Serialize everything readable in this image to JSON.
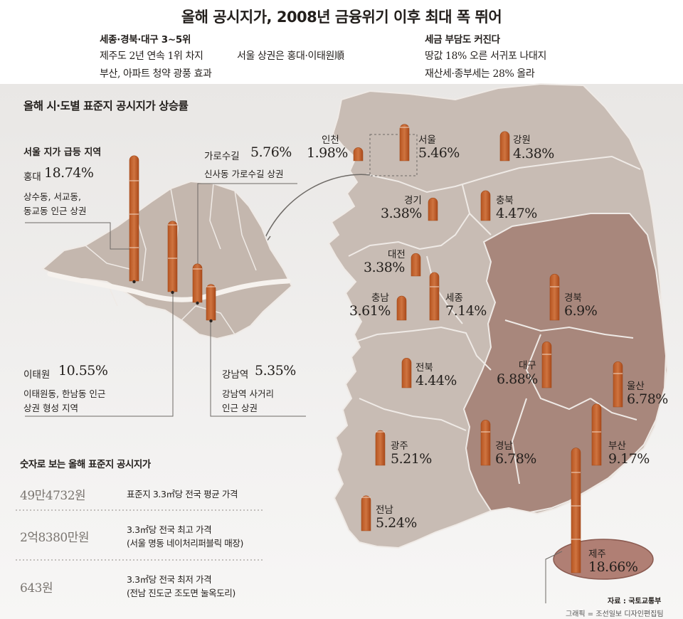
{
  "title": "올해 공시지가, 2008년 금융위기 이후 최대 폭 뛰어",
  "summary": {
    "left_heading": "세종·경북·대구 3~5위",
    "left_lines": [
      "제주도 2년 연속 1위 차지",
      "부산, 아파트 청약 광풍 효과"
    ],
    "middle_line": "서울 상권은 홍대·이태원順",
    "right_heading": "세금 부담도 커진다",
    "right_lines": [
      "땅값 18% 오른 서귀포 나대지",
      "재산세·종부세는 28% 올라"
    ]
  },
  "chart_data": {
    "type": "bar",
    "title": "올해 시·도별 표준지 공시지가 상승률",
    "unit": "%",
    "categories": [
      "인천",
      "서울",
      "강원",
      "경기",
      "충북",
      "대전",
      "충남",
      "세종",
      "경북",
      "전북",
      "대구",
      "울산",
      "광주",
      "경남",
      "부산",
      "전남",
      "제주"
    ],
    "values": [
      1.98,
      5.46,
      4.38,
      3.38,
      4.47,
      3.38,
      3.61,
      7.14,
      6.9,
      4.44,
      6.88,
      6.78,
      5.21,
      6.78,
      9.17,
      5.24,
      18.66
    ],
    "labels": [
      "1.98%",
      "5.46%",
      "4.38%",
      "3.38%",
      "4.47%",
      "3.38%",
      "3.61%",
      "7.14%",
      "6.9%",
      "4.44%",
      "6.88%",
      "6.78%",
      "5.21%",
      "6.78%",
      "9.17%",
      "5.24%",
      "18.66%"
    ],
    "seoul_inset": {
      "title": "서울 지가 급등 지역",
      "areas": [
        {
          "name": "홍대",
          "value": 18.74,
          "label": "18.74%",
          "desc": [
            "상수동, 서교동,",
            "동교동 인근 상권"
          ]
        },
        {
          "name": "이태원",
          "value": 10.55,
          "label": "10.55%",
          "desc": [
            "이태원동, 한남동 인근",
            "상권 형성 지역"
          ]
        },
        {
          "name": "가로수길",
          "value": 5.76,
          "label": "5.76%",
          "desc": [
            "신사동 가로수길 상권"
          ]
        },
        {
          "name": "강남역",
          "value": 5.35,
          "label": "5.35%",
          "desc": [
            "강남역 사거리",
            "인근 상권"
          ]
        }
      ]
    },
    "colors": {
      "bar": "#c0602a",
      "bar_dark": "#a24b1c",
      "land": "#c8bcb4",
      "land_highlight": "#a8877c",
      "jeju": "#b07f74",
      "border": "#efeae6"
    }
  },
  "stats": {
    "title": "숫자로 보는 올해 표준지 공시지가",
    "rows": [
      {
        "value": "49만4732원",
        "desc": [
          "표준지 3.3㎡당 전국 평균 가격"
        ]
      },
      {
        "value": "2억8380만원",
        "desc": [
          "3.3㎡당 전국 최고 가격",
          "(서울 명동 네이처리퍼블릭 매장)"
        ]
      },
      {
        "value": "643원",
        "desc": [
          "3.3㎡당 전국 최저 가격",
          "(전남 진도군 조도면 눌옥도리)"
        ]
      }
    ]
  },
  "source": "자료 : 국토교통부",
  "credit": "그래픽 = 조선일보 디자인편집팀"
}
